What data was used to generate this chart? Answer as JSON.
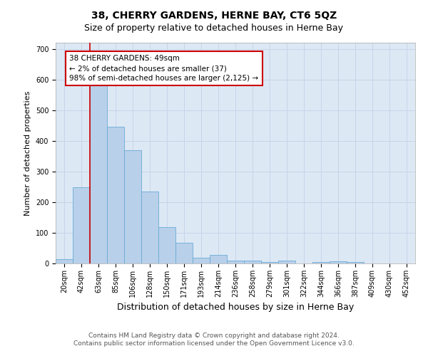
{
  "title": "38, CHERRY GARDENS, HERNE BAY, CT6 5QZ",
  "subtitle": "Size of property relative to detached houses in Herne Bay",
  "xlabel": "Distribution of detached houses by size in Herne Bay",
  "ylabel": "Number of detached properties",
  "categories": [
    "20sqm",
    "42sqm",
    "63sqm",
    "85sqm",
    "106sqm",
    "128sqm",
    "150sqm",
    "171sqm",
    "193sqm",
    "214sqm",
    "236sqm",
    "258sqm",
    "279sqm",
    "301sqm",
    "322sqm",
    "344sqm",
    "366sqm",
    "387sqm",
    "409sqm",
    "430sqm",
    "452sqm"
  ],
  "values": [
    15,
    248,
    580,
    445,
    370,
    235,
    118,
    68,
    18,
    28,
    10,
    10,
    5,
    10,
    1,
    5,
    7,
    5,
    1,
    1,
    1
  ],
  "bar_color": "#b8d0ea",
  "bar_edge_color": "#6aaad4",
  "property_line_x": 1.5,
  "property_line_color": "#cc0000",
  "annotation_text": "38 CHERRY GARDENS: 49sqm\n← 2% of detached houses are smaller (37)\n98% of semi-detached houses are larger (2,125) →",
  "annotation_box_color": "#ffffff",
  "annotation_box_edge_color": "#cc0000",
  "ylim": [
    0,
    720
  ],
  "yticks": [
    0,
    100,
    200,
    300,
    400,
    500,
    600,
    700
  ],
  "footer_line1": "Contains HM Land Registry data © Crown copyright and database right 2024.",
  "footer_line2": "Contains public sector information licensed under the Open Government Licence v3.0.",
  "title_fontsize": 10,
  "subtitle_fontsize": 9,
  "xlabel_fontsize": 9,
  "ylabel_fontsize": 8,
  "tick_fontsize": 7,
  "annotation_fontsize": 7.5,
  "footer_fontsize": 6.5,
  "background_color": "#ffffff",
  "grid_color": "#c8d4e8",
  "fig_width": 6.0,
  "fig_height": 5.0,
  "dpi": 100
}
